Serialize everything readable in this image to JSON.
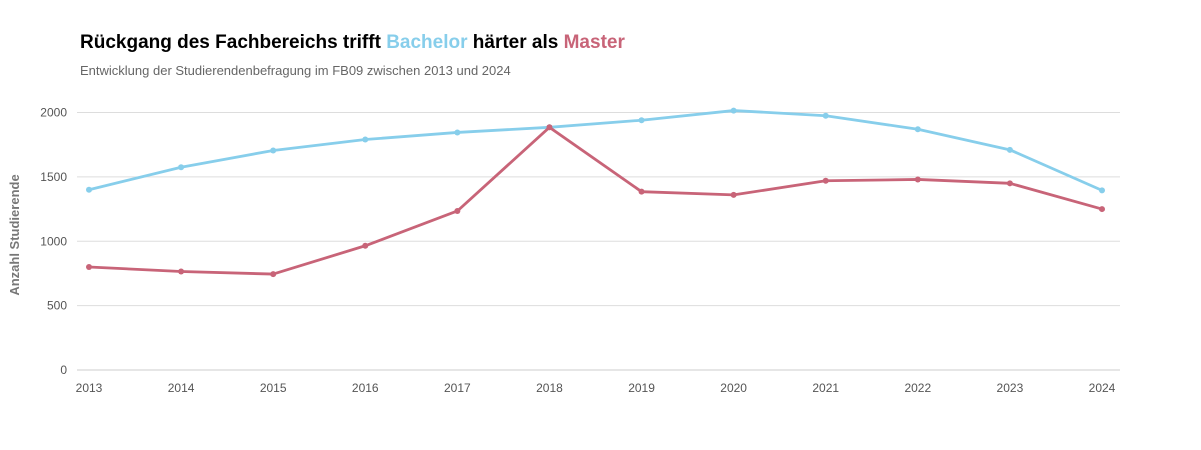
{
  "title": {
    "part1": "Rückgang des Fachbereichs trifft ",
    "highlight1": "Bachelor",
    "part2": " härter als ",
    "highlight2": "Master"
  },
  "subtitle": "Entwicklung der Studierendenbefragung im FB09 zwischen 2013 und 2024",
  "colors": {
    "bachelor": "#87ceeb",
    "master": "#c86478",
    "grid": "#dddddd"
  },
  "chart_data": {
    "type": "line",
    "title": "Rückgang des Fachbereichs trifft Bachelor härter als Master",
    "subtitle": "Entwicklung der Studierendenbefragung im FB09 zwischen 2013 und 2024",
    "xlabel": "",
    "ylabel": "Anzahl Studierende",
    "x": [
      2013,
      2014,
      2015,
      2016,
      2017,
      2018,
      2019,
      2020,
      2021,
      2022,
      2023,
      2024
    ],
    "ylim": [
      0,
      2100
    ],
    "yticks": [
      0,
      500,
      1000,
      1500,
      2000
    ],
    "grid": true,
    "legend": "none",
    "series": [
      {
        "name": "Bachelor",
        "color": "#87ceeb",
        "values": [
          1400,
          1575,
          1705,
          1790,
          1845,
          1885,
          1940,
          2015,
          1975,
          1870,
          1710,
          1395
        ]
      },
      {
        "name": "Master",
        "color": "#c86478",
        "values": [
          800,
          765,
          745,
          965,
          1235,
          1885,
          1385,
          1360,
          1470,
          1480,
          1450,
          1250
        ]
      }
    ]
  }
}
